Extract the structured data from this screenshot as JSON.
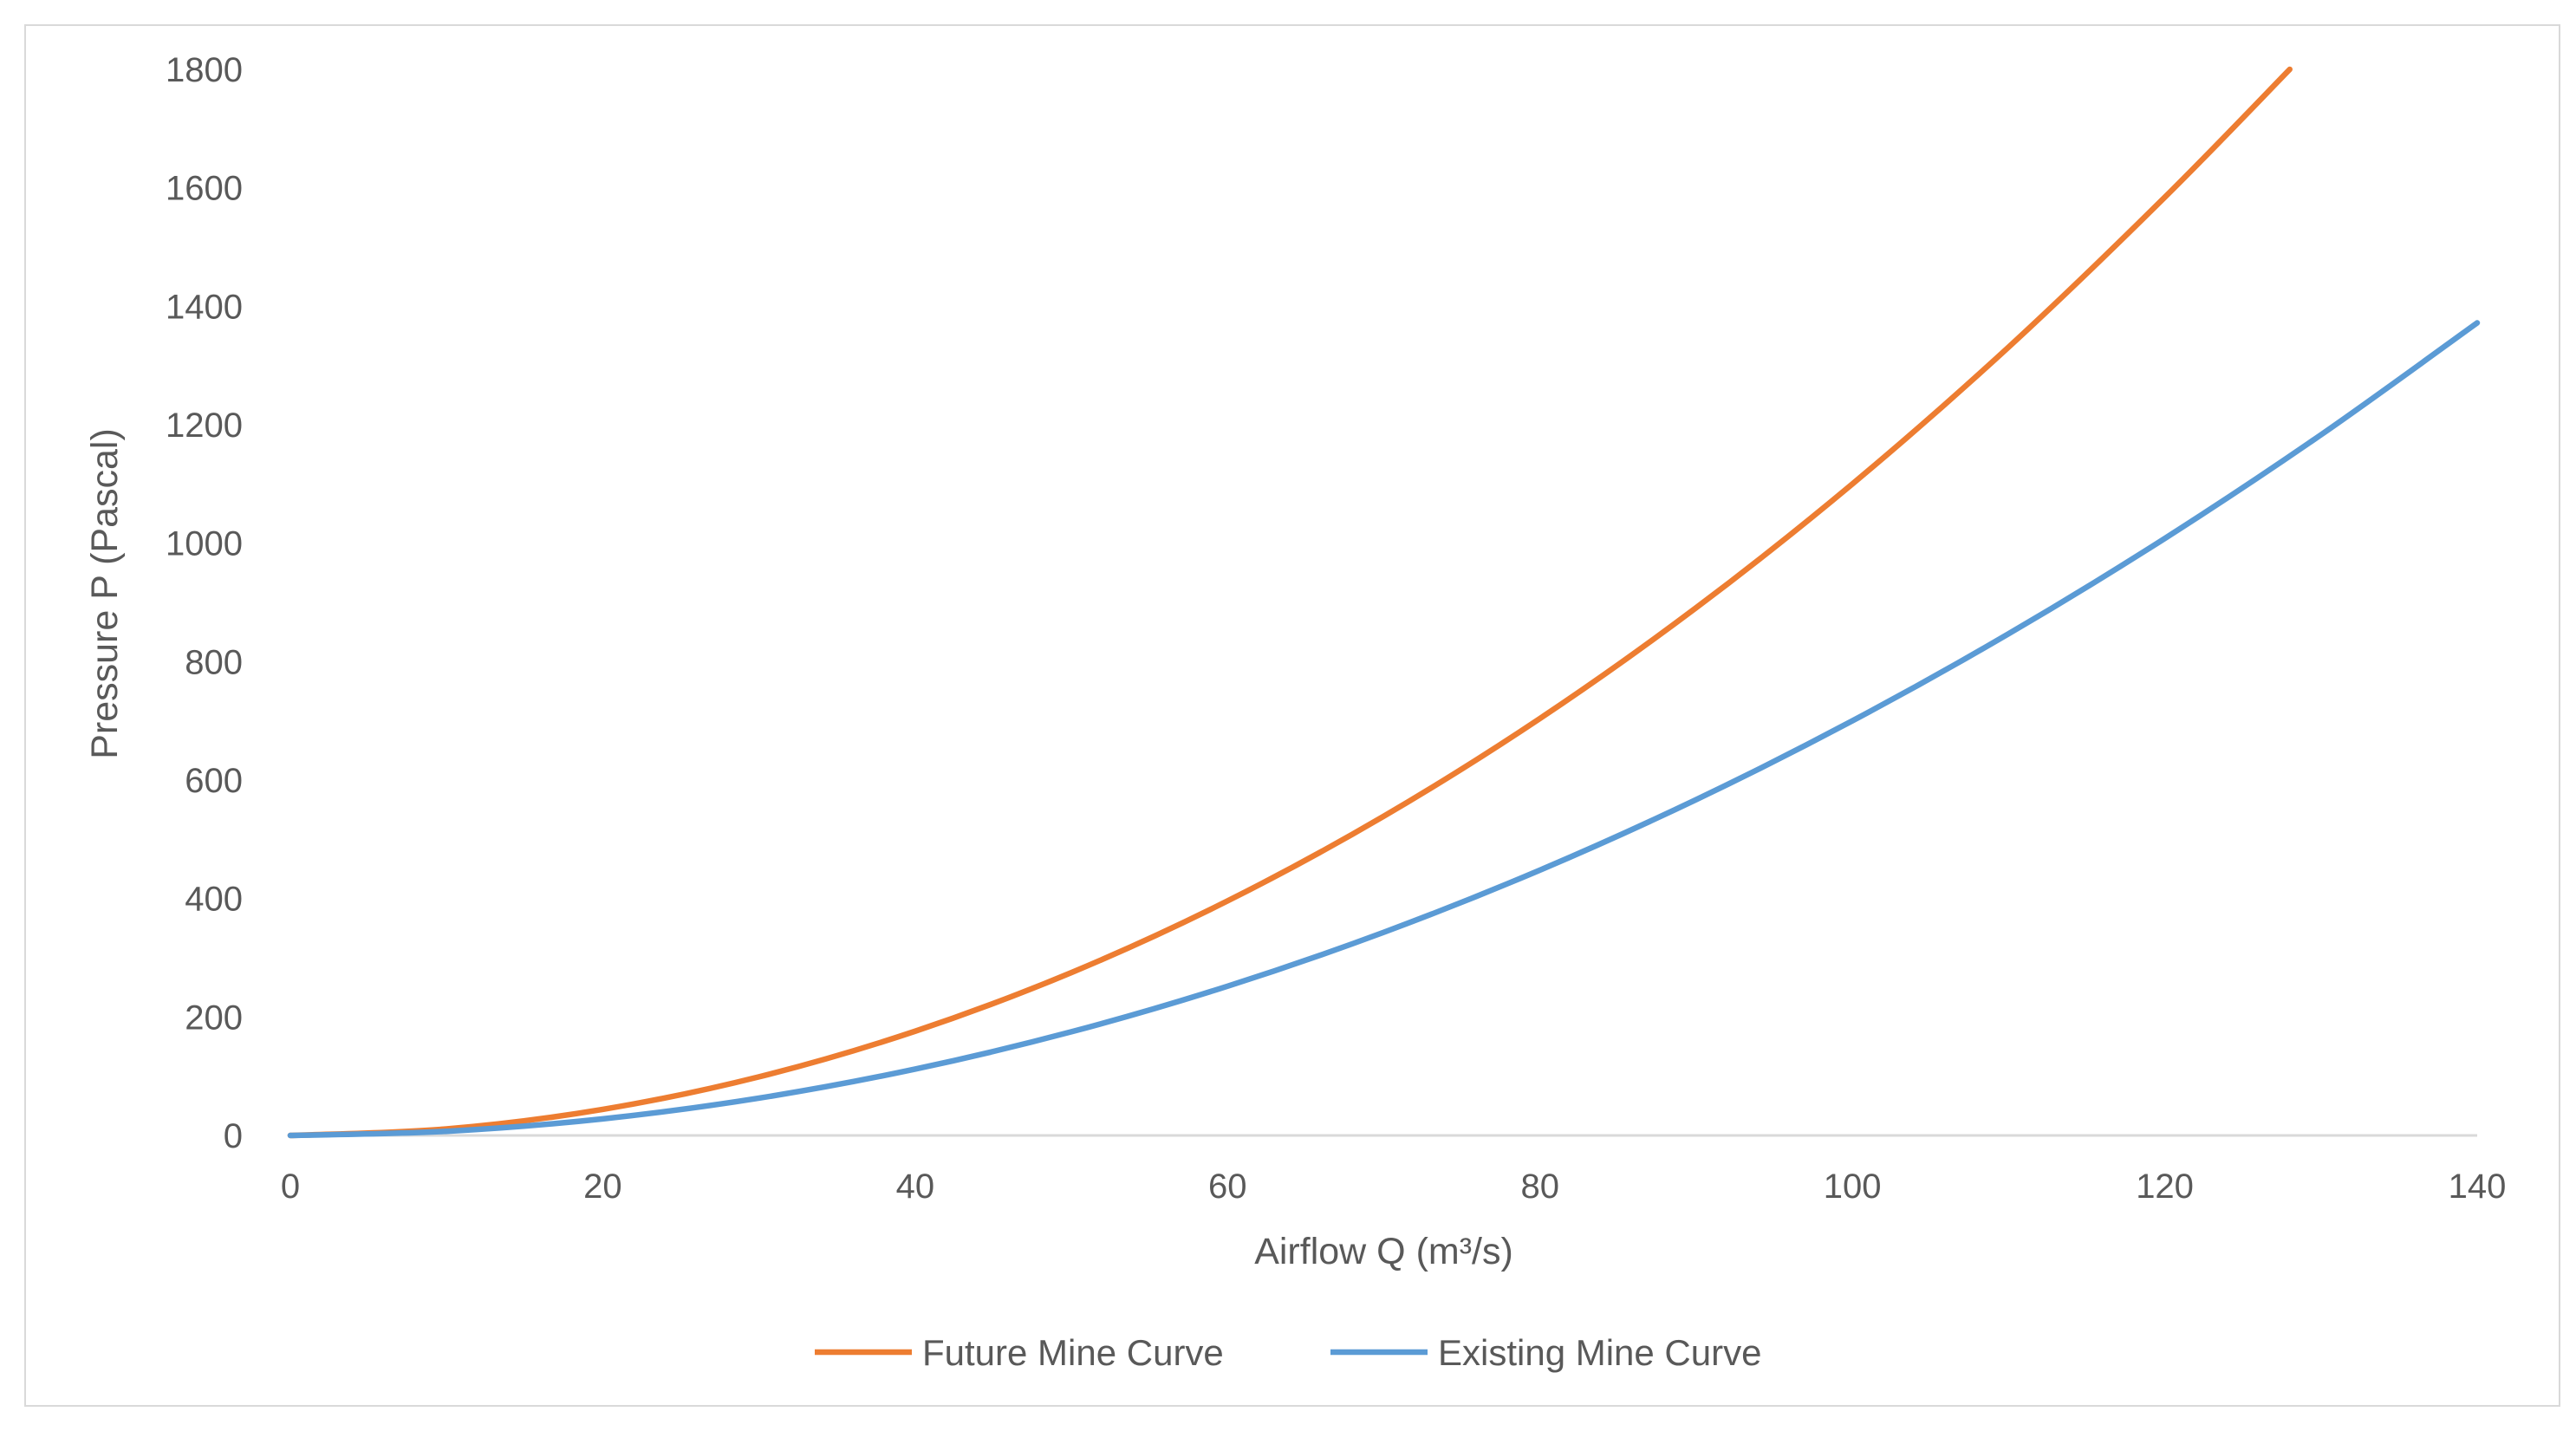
{
  "chart_data": {
    "type": "line",
    "title": "",
    "xlabel": "Airflow Q (m³/s)",
    "ylabel": "Pressure P (Pascal)",
    "xlim": [
      0,
      140
    ],
    "ylim": [
      0,
      1800
    ],
    "xticks": [
      0,
      20,
      40,
      60,
      80,
      100,
      120,
      140
    ],
    "yticks": [
      0,
      200,
      400,
      600,
      800,
      1000,
      1200,
      1400,
      1600,
      1800
    ],
    "grid": false,
    "legend_position": "bottom-center",
    "series": [
      {
        "name": "Future Mine Curve",
        "color": "#ed7d31",
        "x": [
          0,
          10,
          20,
          30,
          40,
          50,
          60,
          70,
          80,
          90,
          100,
          110,
          120,
          128
        ],
        "y": [
          0,
          11,
          44,
          99,
          176,
          275,
          396,
          539,
          704,
          891,
          1100,
          1331,
          1584,
          1800
        ]
      },
      {
        "name": "Existing Mine Curve",
        "color": "#5b9bd5",
        "x": [
          0,
          10,
          20,
          30,
          40,
          50,
          60,
          70,
          80,
          90,
          100,
          110,
          120,
          130,
          140
        ],
        "y": [
          0,
          7,
          28,
          63,
          112,
          175,
          252,
          343,
          448,
          567,
          700,
          847,
          1008,
          1183,
          1372
        ]
      }
    ]
  }
}
